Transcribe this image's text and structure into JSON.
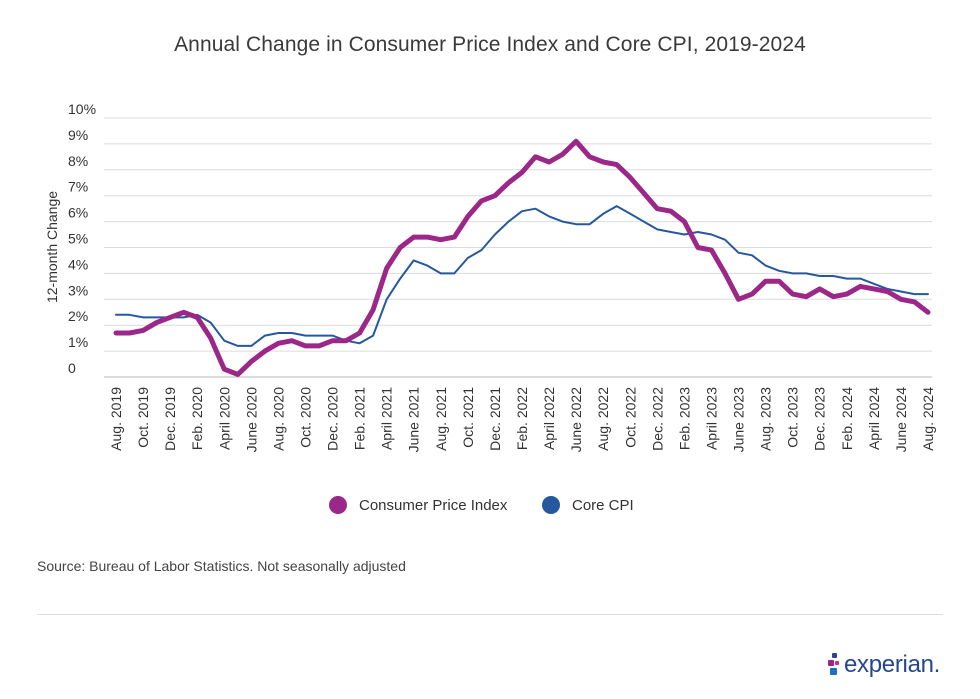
{
  "colors": {
    "cpi": "#9b2788",
    "core": "#26589e",
    "grid": "#dcdcdc",
    "axis_text": "#333333"
  },
  "chart_data": {
    "type": "line",
    "title": "Annual Change in Consumer Price Index and Core CPI, 2019-2024",
    "xlabel": "",
    "ylabel": "12-month Change",
    "ylim": [
      0,
      10
    ],
    "yticks": [
      "0",
      "1%",
      "2%",
      "3%",
      "4%",
      "5%",
      "6%",
      "7%",
      "8%",
      "9%",
      "10%"
    ],
    "grid": true,
    "legend_position": "bottom-center",
    "categories": [
      "Aug. 2019",
      "Sep. 2019",
      "Oct. 2019",
      "Nov. 2019",
      "Dec. 2019",
      "Jan. 2020",
      "Feb. 2020",
      "Mar. 2020",
      "April 2020",
      "May 2020",
      "June 2020",
      "July 2020",
      "Aug. 2020",
      "Sep. 2020",
      "Oct. 2020",
      "Nov. 2020",
      "Dec. 2020",
      "Jan. 2021",
      "Feb. 2021",
      "Mar. 2021",
      "April 2021",
      "May 2021",
      "June 2021",
      "July 2021",
      "Aug. 2021",
      "Sep. 2021",
      "Oct. 2021",
      "Nov. 2021",
      "Dec. 2021",
      "Jan. 2022",
      "Feb. 2022",
      "Mar. 2022",
      "April 2022",
      "May 2022",
      "June 2022",
      "July 2022",
      "Aug. 2022",
      "Sep. 2022",
      "Oct. 2022",
      "Nov. 2022",
      "Dec. 2022",
      "Jan. 2023",
      "Feb. 2023",
      "Mar. 2023",
      "April 2023",
      "May 2023",
      "June 2023",
      "July 2023",
      "Aug. 2023",
      "Sep. 2023",
      "Oct. 2023",
      "Nov. 2023",
      "Dec. 2023",
      "Jan. 2024",
      "Feb. 2024",
      "Mar. 2024",
      "April 2024",
      "May 2024",
      "June 2024",
      "July 2024",
      "Aug. 2024"
    ],
    "tick_labels": [
      "Aug. 2019",
      "Oct. 2019",
      "Dec. 2019",
      "Feb. 2020",
      "April 2020",
      "June 2020",
      "Aug. 2020",
      "Oct. 2020",
      "Dec. 2020",
      "Feb. 2021",
      "April 2021",
      "June 2021",
      "Aug. 2021",
      "Oct. 2021",
      "Dec. 2021",
      "Feb. 2022",
      "April 2022",
      "June 2022",
      "Aug. 2022",
      "Oct. 2022",
      "Dec. 2022",
      "Feb. 2023",
      "April 2023",
      "June 2023",
      "Aug. 2023",
      "Oct. 2023",
      "Dec. 2023",
      "Feb. 2024",
      "April 2024",
      "June 2024",
      "Aug. 2024"
    ],
    "series": [
      {
        "name": "Consumer Price Index",
        "values": [
          1.7,
          1.7,
          1.8,
          2.1,
          2.3,
          2.5,
          2.3,
          1.5,
          0.3,
          0.1,
          0.6,
          1.0,
          1.3,
          1.4,
          1.2,
          1.2,
          1.4,
          1.4,
          1.7,
          2.6,
          4.2,
          5.0,
          5.4,
          5.4,
          5.3,
          5.4,
          6.2,
          6.8,
          7.0,
          7.5,
          7.9,
          8.5,
          8.3,
          8.6,
          9.1,
          8.5,
          8.3,
          8.2,
          7.7,
          7.1,
          6.5,
          6.4,
          6.0,
          5.0,
          4.9,
          4.0,
          3.0,
          3.2,
          3.7,
          3.7,
          3.2,
          3.1,
          3.4,
          3.1,
          3.2,
          3.5,
          3.4,
          3.3,
          3.0,
          2.9,
          2.5
        ]
      },
      {
        "name": "Core CPI",
        "values": [
          2.4,
          2.4,
          2.3,
          2.3,
          2.3,
          2.3,
          2.4,
          2.1,
          1.4,
          1.2,
          1.2,
          1.6,
          1.7,
          1.7,
          1.6,
          1.6,
          1.6,
          1.4,
          1.3,
          1.6,
          3.0,
          3.8,
          4.5,
          4.3,
          4.0,
          4.0,
          4.6,
          4.9,
          5.5,
          6.0,
          6.4,
          6.5,
          6.2,
          6.0,
          5.9,
          5.9,
          6.3,
          6.6,
          6.3,
          6.0,
          5.7,
          5.6,
          5.5,
          5.6,
          5.5,
          5.3,
          4.8,
          4.7,
          4.3,
          4.1,
          4.0,
          4.0,
          3.9,
          3.9,
          3.8,
          3.8,
          3.6,
          3.4,
          3.3,
          3.2,
          3.2
        ]
      }
    ]
  },
  "legend": {
    "cpi_label": "Consumer Price Index",
    "core_label": "Core CPI"
  },
  "footer": {
    "source": "Source: Bureau of Labor Statistics. Not seasonally adjusted",
    "brand": "experian."
  }
}
